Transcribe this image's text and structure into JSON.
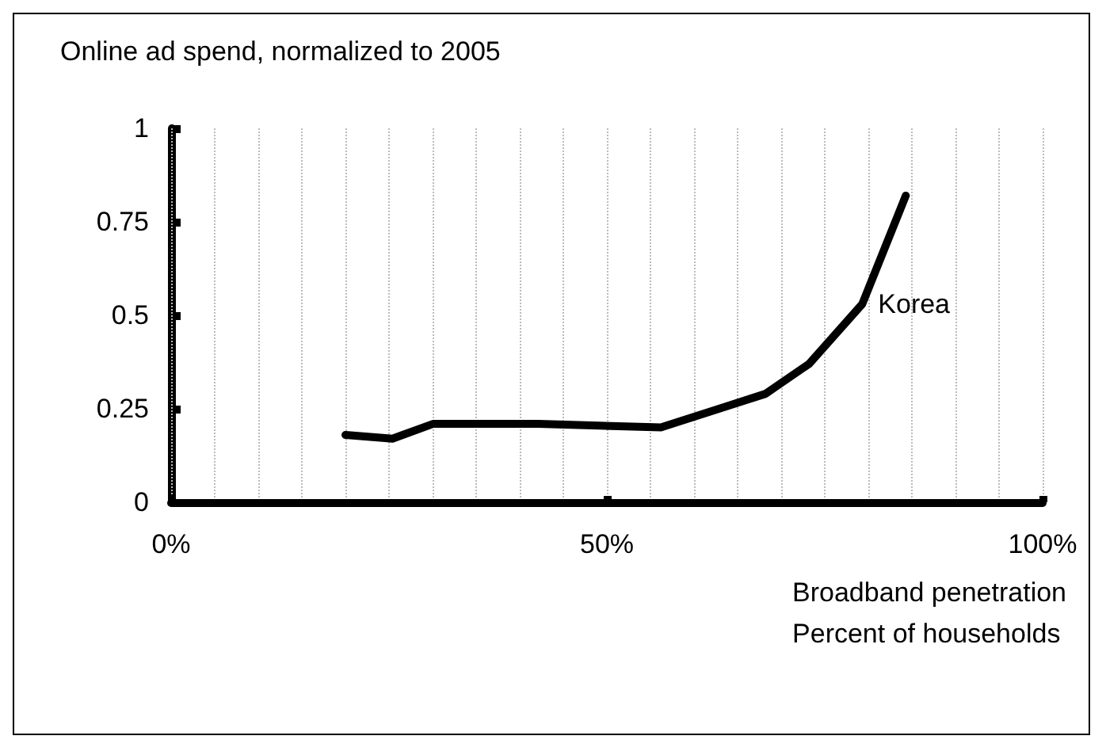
{
  "chart_data": {
    "type": "line",
    "title": "Online ad spend, normalized to 2005",
    "xlabel": "Broadband penetration\nPercent of households",
    "x": [
      20,
      25.4,
      30.1,
      42.1,
      56.2,
      68.2,
      73.2,
      79.3,
      84.3
    ],
    "series": [
      {
        "name": "Korea",
        "color": "#000000",
        "values": [
          0.18,
          0.17,
          0.21,
          0.21,
          0.2,
          0.29,
          0.37,
          0.53,
          0.82
        ]
      }
    ],
    "xlim": [
      0,
      100
    ],
    "xticks": [
      {
        "value": 0,
        "label": "0%"
      },
      {
        "value": 5,
        "label": null
      },
      {
        "value": 10,
        "label": null
      },
      {
        "value": 15,
        "label": null
      },
      {
        "value": 20,
        "label": null
      },
      {
        "value": 25,
        "label": null
      },
      {
        "value": 30,
        "label": null
      },
      {
        "value": 35,
        "label": null
      },
      {
        "value": 40,
        "label": null
      },
      {
        "value": 45,
        "label": null
      },
      {
        "value": 50,
        "label": "50%"
      },
      {
        "value": 55,
        "label": null
      },
      {
        "value": 60,
        "label": null
      },
      {
        "value": 65,
        "label": null
      },
      {
        "value": 70,
        "label": null
      },
      {
        "value": 75,
        "label": null
      },
      {
        "value": 80,
        "label": null
      },
      {
        "value": 85,
        "label": null
      },
      {
        "value": 90,
        "label": null
      },
      {
        "value": 95,
        "label": null
      },
      {
        "value": 100,
        "label": "100%"
      }
    ],
    "ylim": [
      0,
      1
    ],
    "yticks": [
      0,
      0.25,
      0.5,
      0.75,
      1
    ],
    "grid": "x",
    "legend": false,
    "marker": "none",
    "line_style": "solid"
  }
}
